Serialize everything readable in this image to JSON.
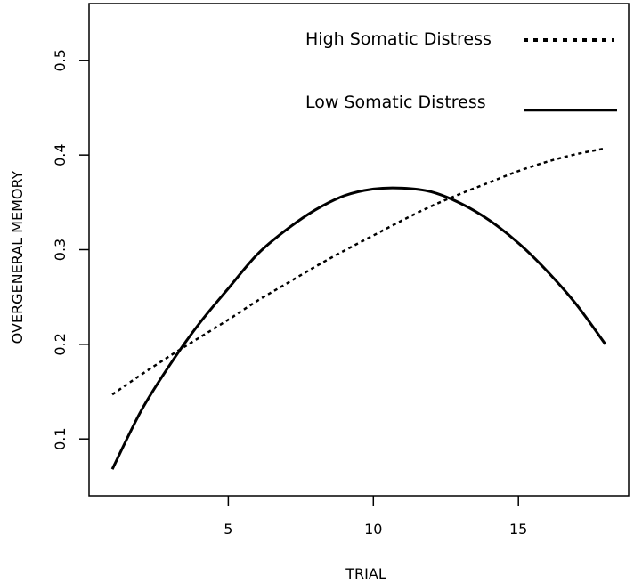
{
  "chart_data": {
    "type": "line",
    "title": "",
    "xlabel": "TRIAL",
    "ylabel": "OVERGENERAL MEMORY",
    "xlim": [
      0.2,
      18.8
    ],
    "ylim": [
      0.04,
      0.56
    ],
    "x_ticks": [
      5,
      10,
      15
    ],
    "y_ticks": [
      0.1,
      0.2,
      0.3,
      0.4,
      0.5
    ],
    "grid": false,
    "legend_position": "top-right",
    "series": [
      {
        "name": "High Somatic Distress",
        "line_style": "dotted",
        "color": "#000000",
        "x": [
          1,
          2,
          3,
          4,
          5,
          6,
          7,
          8,
          9,
          10,
          11,
          12,
          13,
          14,
          15,
          16,
          17,
          18
        ],
        "y": [
          0.147,
          0.168,
          0.188,
          0.207,
          0.226,
          0.246,
          0.264,
          0.282,
          0.299,
          0.315,
          0.331,
          0.346,
          0.359,
          0.371,
          0.383,
          0.393,
          0.401,
          0.407
        ]
      },
      {
        "name": "Low Somatic Distress",
        "line_style": "solid",
        "color": "#000000",
        "x": [
          1,
          2,
          3,
          4,
          5,
          6,
          7,
          8,
          9,
          10,
          11,
          12,
          13,
          14,
          15,
          16,
          17,
          18
        ],
        "y": [
          0.068,
          0.13,
          0.179,
          0.222,
          0.259,
          0.295,
          0.321,
          0.342,
          0.357,
          0.364,
          0.365,
          0.361,
          0.349,
          0.331,
          0.307,
          0.277,
          0.242,
          0.2
        ]
      }
    ]
  }
}
